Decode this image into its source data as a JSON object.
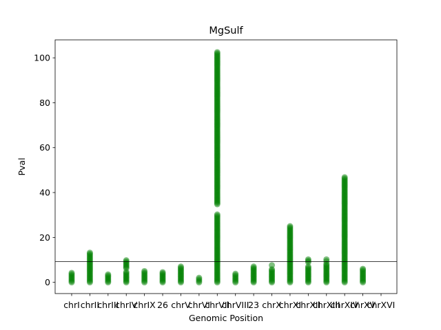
{
  "chart_data": {
    "type": "scatter",
    "title": "MgSulf",
    "xlabel": "Genomic Position",
    "ylabel": "Pval",
    "categories": [
      "chrI",
      "chrII",
      "chrIII",
      "chrIV",
      "chrIX",
      "26",
      "chrV",
      "chrVI",
      "chrVII",
      "chrVIII",
      "23",
      "chrX",
      "chrXI",
      "chrXII",
      "chrXIII",
      "chrXIV",
      "chrXV",
      "chrXVI"
    ],
    "ylim": [
      -5,
      108
    ],
    "yticks": [
      0,
      20,
      40,
      60,
      80,
      100
    ],
    "threshold": 9.2,
    "point_color": "#008000",
    "series": [
      {
        "category": "chrI",
        "ranges": [
          [
            0,
            4.2
          ]
        ]
      },
      {
        "category": "chrII",
        "ranges": [
          [
            0,
            13.2
          ]
        ]
      },
      {
        "category": "chrIII",
        "ranges": [
          [
            0,
            3.5
          ]
        ]
      },
      {
        "category": "chrIV",
        "ranges": [
          [
            0,
            4.6
          ],
          [
            6.3,
            9.8
          ]
        ]
      },
      {
        "category": "chrIX",
        "ranges": [
          [
            0,
            5.0
          ]
        ]
      },
      {
        "category": "26",
        "ranges": [
          [
            0,
            4.5
          ]
        ]
      },
      {
        "category": "chrV",
        "ranges": [
          [
            0,
            7.0
          ]
        ]
      },
      {
        "category": "chrVI",
        "ranges": [
          [
            0,
            2.0
          ]
        ]
      },
      {
        "category": "chrVII",
        "ranges": [
          [
            0,
            30.2
          ],
          [
            34.8,
            102.5
          ]
        ]
      },
      {
        "category": "chrVIII",
        "ranges": [
          [
            0,
            3.8
          ]
        ]
      },
      {
        "category": "23",
        "ranges": [
          [
            0,
            7.0
          ]
        ]
      },
      {
        "category": "chrX",
        "ranges": [
          [
            0,
            5.8
          ],
          [
            7.6,
            7.6
          ]
        ]
      },
      {
        "category": "chrXI",
        "ranges": [
          [
            0,
            25.0
          ]
        ]
      },
      {
        "category": "chrXII",
        "ranges": [
          [
            0,
            7.0
          ],
          [
            9.0,
            10.2
          ]
        ]
      },
      {
        "category": "chrXIII",
        "ranges": [
          [
            0,
            8.2
          ],
          [
            9.4,
            10.2
          ]
        ]
      },
      {
        "category": "chrXIV",
        "ranges": [
          [
            0,
            46.8
          ]
        ]
      },
      {
        "category": "chrXV",
        "ranges": [
          [
            0,
            6.0
          ]
        ]
      },
      {
        "category": "chrXVI",
        "ranges": []
      }
    ]
  }
}
